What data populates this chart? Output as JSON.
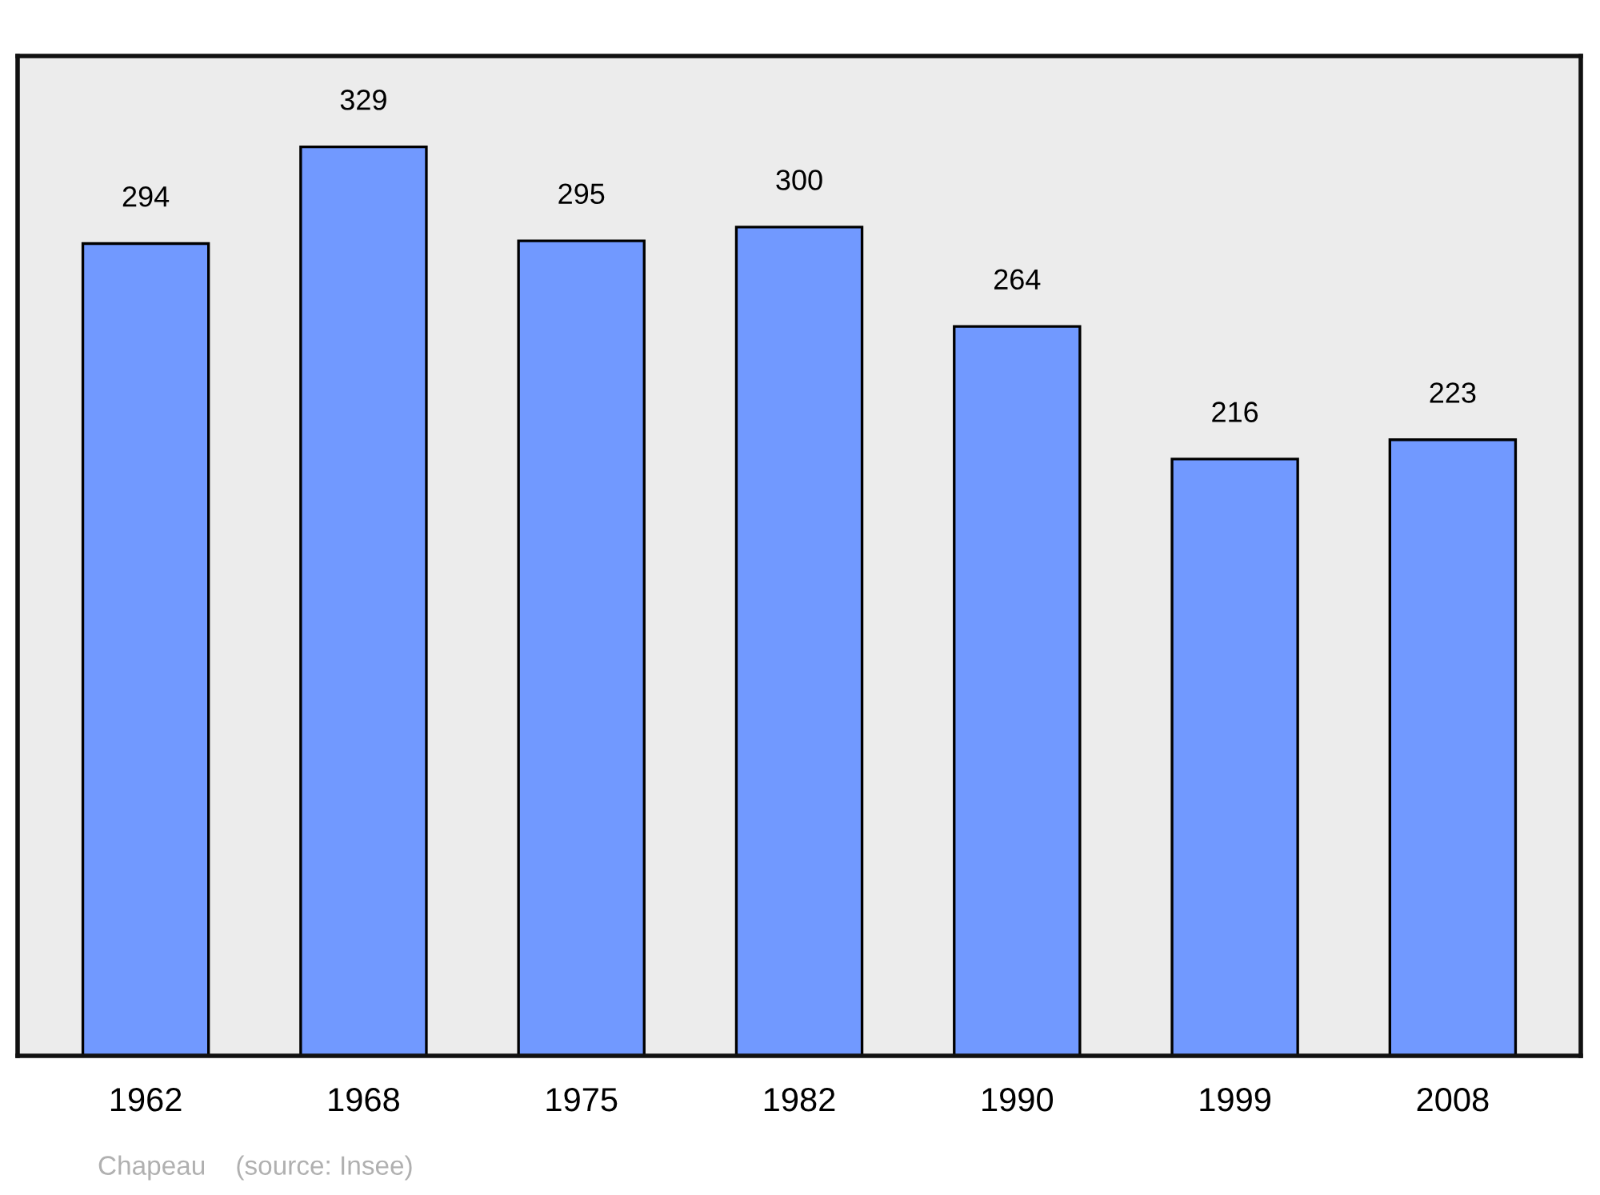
{
  "chart_data": {
    "type": "bar",
    "categories": [
      "1962",
      "1968",
      "1975",
      "1982",
      "1990",
      "1999",
      "2008"
    ],
    "values": [
      294,
      329,
      295,
      300,
      264,
      216,
      223
    ],
    "color": "#7199ff",
    "data_labels": true,
    "grid": false,
    "annotations": [
      "Chapeau    (source: Insee)"
    ]
  }
}
